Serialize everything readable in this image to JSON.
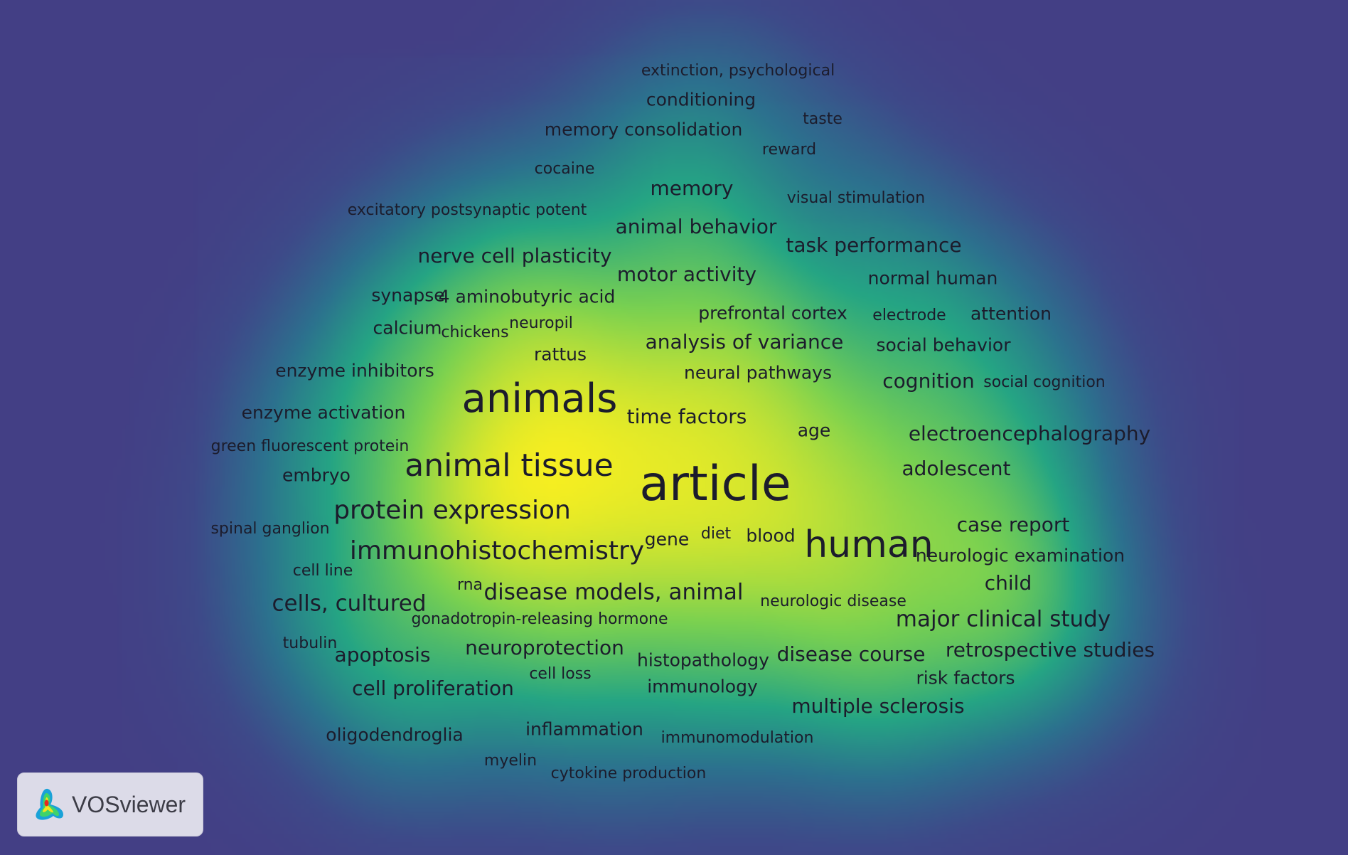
{
  "app": {
    "name": "VOSviewer",
    "logo_icon": "vosviewer-logo-icon"
  },
  "colors": {
    "background": "#433f85",
    "low": "#3b4f8c",
    "mid": "#25a584",
    "high": "#f6ee21"
  },
  "terms": [
    {
      "label": "extinction, psychological",
      "weight": 1
    },
    {
      "label": "conditioning",
      "weight": 2
    },
    {
      "label": "taste",
      "weight": 1
    },
    {
      "label": "memory consolidation",
      "weight": 2
    },
    {
      "label": "reward",
      "weight": 1
    },
    {
      "label": "cocaine",
      "weight": 1
    },
    {
      "label": "memory",
      "weight": 3
    },
    {
      "label": "visual stimulation",
      "weight": 1
    },
    {
      "label": "excitatory postsynaptic potent",
      "weight": 1
    },
    {
      "label": "animal behavior",
      "weight": 3
    },
    {
      "label": "task performance",
      "weight": 3
    },
    {
      "label": "nerve cell plasticity",
      "weight": 3
    },
    {
      "label": "motor activity",
      "weight": 3
    },
    {
      "label": "normal human",
      "weight": 2
    },
    {
      "label": "synapse",
      "weight": 2
    },
    {
      "label": "4 aminobutyric acid",
      "weight": 2
    },
    {
      "label": "prefrontal cortex",
      "weight": 2
    },
    {
      "label": "electrode",
      "weight": 1
    },
    {
      "label": "attention",
      "weight": 2
    },
    {
      "label": "calcium",
      "weight": 2
    },
    {
      "label": "chickens",
      "weight": 1
    },
    {
      "label": "neuropil",
      "weight": 1
    },
    {
      "label": "analysis of variance",
      "weight": 3
    },
    {
      "label": "social behavior",
      "weight": 2
    },
    {
      "label": "rattus",
      "weight": 2
    },
    {
      "label": "enzyme inhibitors",
      "weight": 2
    },
    {
      "label": "neural pathways",
      "weight": 2
    },
    {
      "label": "cognition",
      "weight": 3
    },
    {
      "label": "social cognition",
      "weight": 1
    },
    {
      "label": "animals",
      "weight": 10
    },
    {
      "label": "time factors",
      "weight": 3
    },
    {
      "label": "enzyme activation",
      "weight": 2
    },
    {
      "label": "age",
      "weight": 2
    },
    {
      "label": "electroencephalography",
      "weight": 3
    },
    {
      "label": "green fluorescent protein",
      "weight": 1
    },
    {
      "label": "animal tissue",
      "weight": 7
    },
    {
      "label": "article",
      "weight": 12
    },
    {
      "label": "embryo",
      "weight": 2
    },
    {
      "label": "adolescent",
      "weight": 3
    },
    {
      "label": "protein expression",
      "weight": 5
    },
    {
      "label": "case report",
      "weight": 3
    },
    {
      "label": "spinal ganglion",
      "weight": 1
    },
    {
      "label": "gene",
      "weight": 2
    },
    {
      "label": "diet",
      "weight": 1
    },
    {
      "label": "blood",
      "weight": 2
    },
    {
      "label": "human",
      "weight": 9
    },
    {
      "label": "immunohistochemistry",
      "weight": 5
    },
    {
      "label": "neurologic examination",
      "weight": 2
    },
    {
      "label": "cell line",
      "weight": 1
    },
    {
      "label": "child",
      "weight": 3
    },
    {
      "label": "rna",
      "weight": 1
    },
    {
      "label": "disease models, animal",
      "weight": 4
    },
    {
      "label": "cells, cultured",
      "weight": 4
    },
    {
      "label": "neurologic disease",
      "weight": 1
    },
    {
      "label": "gonadotropin-releasing hormone",
      "weight": 1
    },
    {
      "label": "major clinical study",
      "weight": 4
    },
    {
      "label": "tubulin",
      "weight": 1
    },
    {
      "label": "apoptosis",
      "weight": 3
    },
    {
      "label": "neuroprotection",
      "weight": 3
    },
    {
      "label": "retrospective studies",
      "weight": 3
    },
    {
      "label": "histopathology",
      "weight": 2
    },
    {
      "label": "disease course",
      "weight": 3
    },
    {
      "label": "cell loss",
      "weight": 1
    },
    {
      "label": "risk factors",
      "weight": 2
    },
    {
      "label": "cell proliferation",
      "weight": 3
    },
    {
      "label": "immunology",
      "weight": 2
    },
    {
      "label": "multiple sclerosis",
      "weight": 3
    },
    {
      "label": "oligodendroglia",
      "weight": 2
    },
    {
      "label": "inflammation",
      "weight": 2
    },
    {
      "label": "immunomodulation",
      "weight": 1
    },
    {
      "label": "myelin",
      "weight": 1
    },
    {
      "label": "cytokine production",
      "weight": 1
    }
  ]
}
